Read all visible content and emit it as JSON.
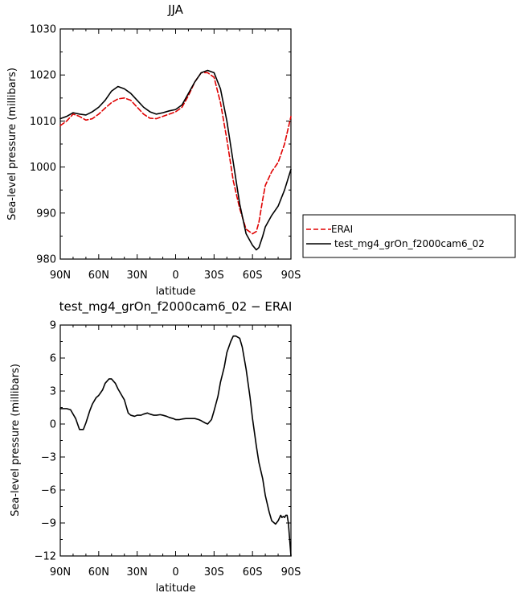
{
  "chart_data": [
    {
      "type": "line",
      "title": "JJA",
      "xlabel": "latitude",
      "ylabel": "Sea-level pressure (millibars)",
      "ylim": [
        980,
        1030
      ],
      "yticks": [
        980,
        990,
        1000,
        1010,
        1020,
        1030
      ],
      "x_ticks": [
        -90,
        -60,
        -30,
        0,
        30,
        60,
        90
      ],
      "x_tick_labels": [
        "90N",
        "60N",
        "30N",
        "0",
        "30S",
        "60S",
        "90S"
      ],
      "legend": {
        "position": "right"
      },
      "series": [
        {
          "name": "ERAI",
          "color": "#e00000",
          "dash": "dashed",
          "x": [
            -90,
            -85,
            -80,
            -75,
            -70,
            -65,
            -60,
            -55,
            -50,
            -45,
            -40,
            -35,
            -30,
            -25,
            -20,
            -15,
            -10,
            -5,
            0,
            5,
            10,
            15,
            20,
            25,
            30,
            35,
            40,
            45,
            50,
            55,
            60,
            63,
            65,
            68,
            70,
            75,
            80,
            85,
            90
          ],
          "y": [
            1009,
            1010,
            1011.5,
            1011,
            1010.2,
            1010.5,
            1011.5,
            1012.8,
            1014,
            1014.8,
            1015,
            1014.5,
            1013,
            1011.5,
            1010.6,
            1010.5,
            1011,
            1011.5,
            1012,
            1013,
            1015.5,
            1018.5,
            1020.5,
            1020.5,
            1019.5,
            1014,
            1006,
            997,
            991,
            986.5,
            985.5,
            986,
            988,
            993,
            996,
            999,
            1001,
            1005,
            1011
          ]
        },
        {
          "name": "test_mg4_grOn_f2000cam6_02",
          "color": "#000000",
          "dash": "solid",
          "x": [
            -90,
            -85,
            -80,
            -75,
            -70,
            -65,
            -60,
            -55,
            -50,
            -45,
            -40,
            -35,
            -30,
            -25,
            -20,
            -15,
            -10,
            -5,
            0,
            5,
            10,
            15,
            20,
            25,
            30,
            35,
            40,
            45,
            50,
            55,
            60,
            63,
            65,
            68,
            70,
            75,
            80,
            85,
            90
          ],
          "y": [
            1010.5,
            1011,
            1011.8,
            1011.5,
            1011.3,
            1012,
            1013,
            1014.5,
            1016.5,
            1017.5,
            1017,
            1016,
            1014.5,
            1013,
            1012,
            1011.5,
            1011.8,
            1012.2,
            1012.5,
            1013.5,
            1016,
            1018.5,
            1020.5,
            1021,
            1020.5,
            1017,
            1010,
            1001,
            992,
            985.5,
            983,
            982,
            982.5,
            985,
            987,
            989.5,
            991.5,
            995,
            999.5
          ]
        }
      ]
    },
    {
      "type": "line",
      "title": "test_mg4_grOn_f2000cam6_02 − ERAI",
      "xlabel": "latitude",
      "ylabel": "Sea-level pressure (millibars)",
      "ylim": [
        -12,
        9
      ],
      "yticks": [
        -12,
        -9,
        -6,
        -3,
        0,
        3,
        6,
        9
      ],
      "x_ticks": [
        -90,
        -60,
        -30,
        0,
        30,
        60,
        90
      ],
      "x_tick_labels": [
        "90N",
        "60N",
        "30N",
        "0",
        "30S",
        "60S",
        "90S"
      ],
      "series": [
        {
          "color": "#000000",
          "dash": "solid",
          "x": [
            -90,
            -85,
            -82,
            -78,
            -75,
            -72,
            -70,
            -67,
            -65,
            -62,
            -60,
            -57,
            -55,
            -52,
            -50,
            -47,
            -45,
            -42,
            -40,
            -37,
            -35,
            -32,
            -30,
            -27,
            -25,
            -22,
            -20,
            -17,
            -15,
            -12,
            -10,
            -7,
            -5,
            -2,
            0,
            3,
            5,
            8,
            10,
            13,
            15,
            18,
            20,
            23,
            25,
            28,
            30,
            33,
            35,
            38,
            40,
            43,
            45,
            47,
            50,
            52,
            55,
            58,
            60,
            63,
            65,
            68,
            70,
            73,
            75,
            78,
            80,
            82,
            83,
            84,
            85,
            86,
            87,
            88,
            89,
            90
          ],
          "y": [
            1.4,
            1.4,
            1.3,
            0.5,
            -0.5,
            -0.5,
            0.1,
            1.2,
            1.8,
            2.4,
            2.6,
            3.1,
            3.7,
            4.1,
            4.1,
            3.7,
            3.2,
            2.6,
            2.2,
            1,
            0.8,
            0.7,
            0.8,
            0.8,
            0.9,
            1,
            0.9,
            0.8,
            0.8,
            0.85,
            0.8,
            0.7,
            0.6,
            0.5,
            0.4,
            0.4,
            0.45,
            0.5,
            0.5,
            0.5,
            0.5,
            0.4,
            0.3,
            0.1,
            0,
            0.4,
            1.2,
            2.5,
            3.8,
            5.2,
            6.5,
            7.5,
            8,
            8,
            7.8,
            7,
            5,
            2.5,
            0.5,
            -2,
            -3.5,
            -5,
            -6.5,
            -8,
            -8.8,
            -9.1,
            -8.8,
            -8.3,
            -8.5,
            -8.4,
            -8.5,
            -8.3,
            -8.3,
            -9,
            -10.5,
            -12
          ]
        }
      ]
    }
  ]
}
